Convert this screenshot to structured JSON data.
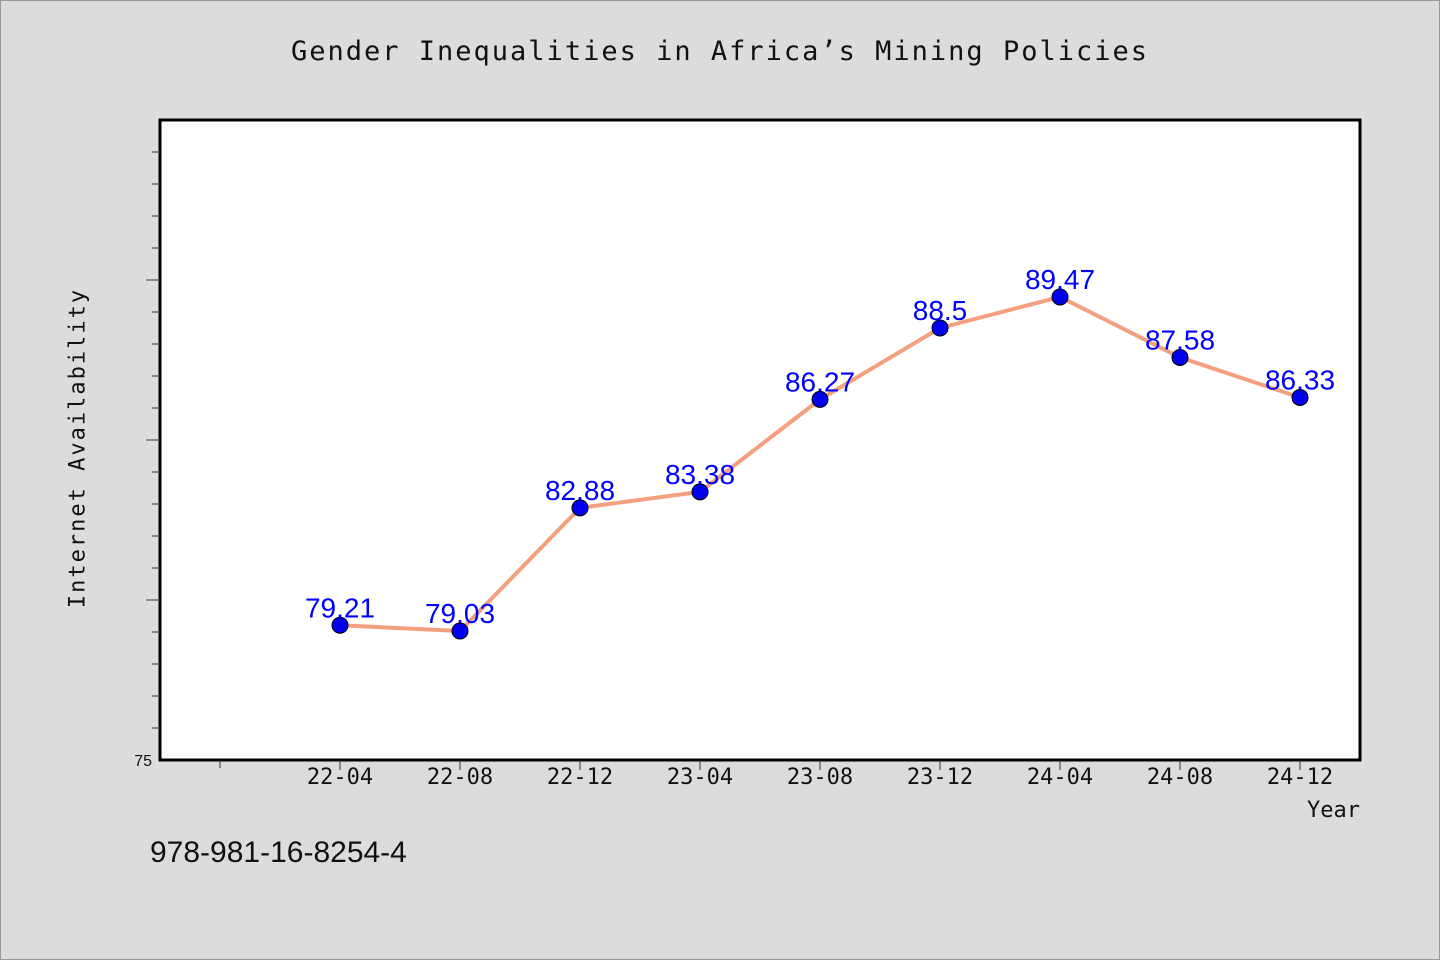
{
  "chart_data": {
    "type": "line",
    "title": "Gender Inequalities in Africa’s Mining Policies",
    "xlabel": "Year",
    "ylabel": "Internet Availability",
    "categories": [
      "22-04",
      "22-08",
      "22-12",
      "23-04",
      "23-08",
      "23-12",
      "24-04",
      "24-08",
      "24-12"
    ],
    "series": [
      {
        "values": [
          79.21,
          79.03,
          82.88,
          83.38,
          86.27,
          88.5,
          89.47,
          87.58,
          86.33
        ],
        "labels": [
          "79.21",
          "79.03",
          "82.88",
          "83.38",
          "86.27",
          "88.5",
          "89.47",
          "87.58",
          "86.33"
        ]
      }
    ],
    "ylim": [
      75,
      95
    ],
    "y_tick_labels": [
      "75"
    ],
    "grid": false,
    "line_color": "#f4a07e",
    "marker_color": "#0000ee",
    "label_color": "#0000ff"
  },
  "footnote": "978-981-16-8254-4"
}
